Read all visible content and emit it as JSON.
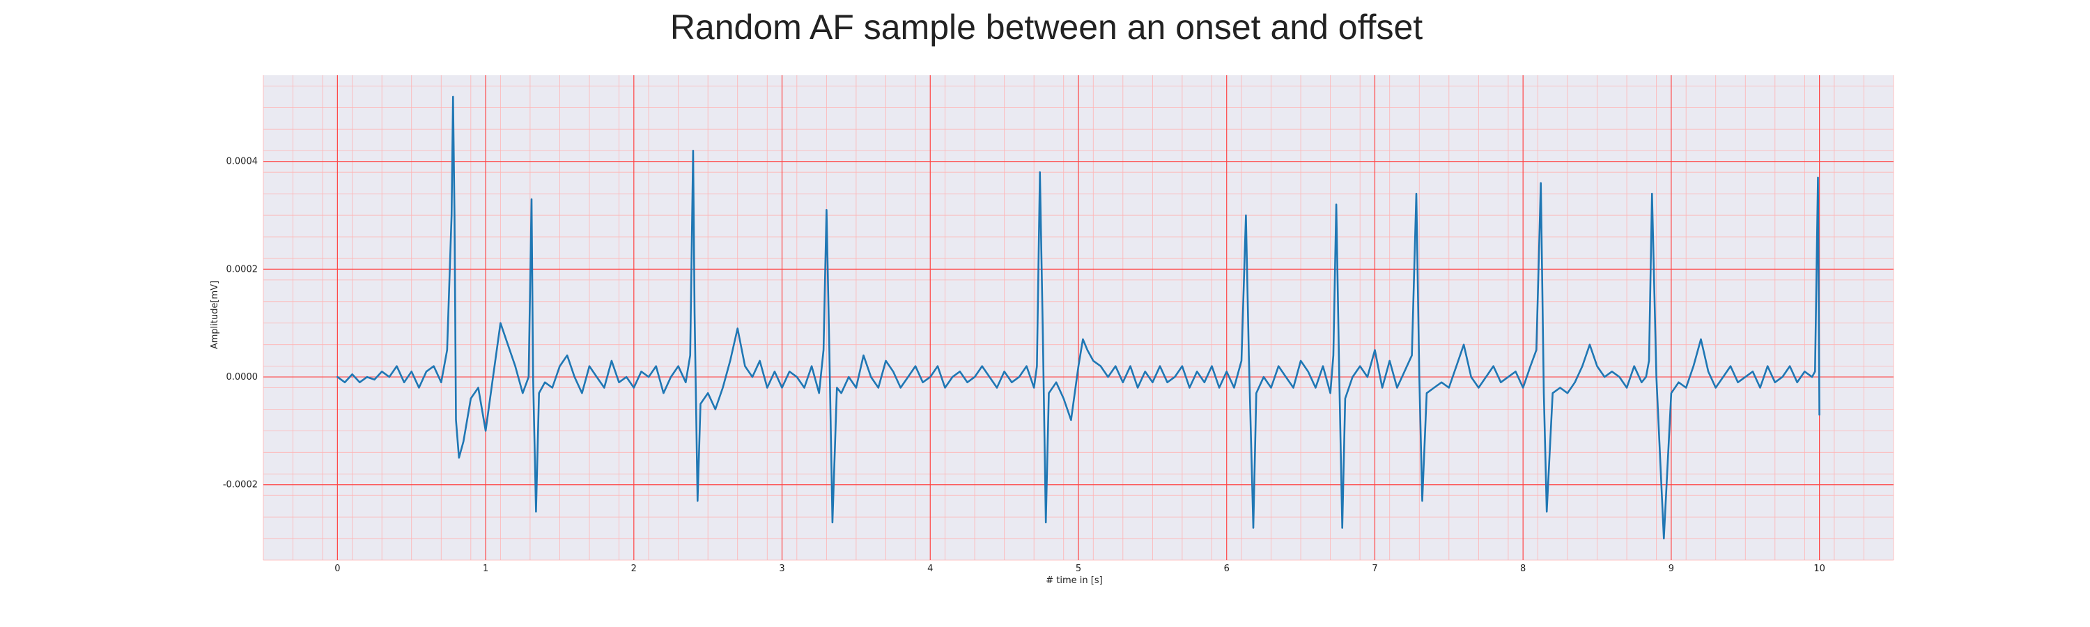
{
  "chart_data": {
    "type": "line",
    "title": "Random AF sample between an onset and offset",
    "xlabel": "# time in [s]",
    "ylabel": "Amplitude[mV]",
    "xlim": [
      -0.5,
      10.5
    ],
    "ylim": [
      -0.00034,
      0.00056
    ],
    "xticks": [
      0,
      1,
      2,
      3,
      4,
      5,
      6,
      7,
      8,
      9,
      10
    ],
    "xtick_labels": [
      "0",
      "1",
      "2",
      "3",
      "4",
      "5",
      "6",
      "7",
      "8",
      "9",
      "10"
    ],
    "yticks": [
      -0.0002,
      0.0,
      0.0002,
      0.0004
    ],
    "ytick_labels": [
      "-0.0002",
      "0.0000",
      "0.0002",
      "0.0004"
    ],
    "grid": true,
    "grid_minor": true,
    "colors": {
      "background": "#eaeaf2",
      "major_grid": "#ff4444",
      "minor_grid": "#ffb3b3",
      "line": "#1f77b4"
    },
    "series": [
      {
        "x": [
          0.0,
          0.05,
          0.1,
          0.15,
          0.2,
          0.25,
          0.3,
          0.35,
          0.4,
          0.45,
          0.5,
          0.55,
          0.6,
          0.65,
          0.7,
          0.74,
          0.77,
          0.78,
          0.79,
          0.8,
          0.82,
          0.85,
          0.9,
          0.95,
          1.0,
          1.05,
          1.1,
          1.15,
          1.2,
          1.25,
          1.29,
          1.31,
          1.32,
          1.34,
          1.36,
          1.4,
          1.45,
          1.5,
          1.55,
          1.6,
          1.65,
          1.7,
          1.75,
          1.8,
          1.85,
          1.9,
          1.95,
          2.0,
          2.05,
          2.1,
          2.15,
          2.2,
          2.25,
          2.3,
          2.35,
          2.38,
          2.4,
          2.41,
          2.43,
          2.45,
          2.5,
          2.55,
          2.6,
          2.65,
          2.7,
          2.75,
          2.8,
          2.85,
          2.9,
          2.95,
          3.0,
          3.05,
          3.1,
          3.15,
          3.2,
          3.25,
          3.28,
          3.3,
          3.32,
          3.34,
          3.37,
          3.4,
          3.45,
          3.5,
          3.55,
          3.6,
          3.65,
          3.7,
          3.75,
          3.8,
          3.85,
          3.9,
          3.95,
          4.0,
          4.05,
          4.1,
          4.15,
          4.2,
          4.25,
          4.3,
          4.35,
          4.4,
          4.45,
          4.5,
          4.55,
          4.6,
          4.65,
          4.7,
          4.72,
          4.74,
          4.76,
          4.78,
          4.8,
          4.85,
          4.9,
          4.95,
          5.0,
          5.03,
          5.06,
          5.1,
          5.15,
          5.2,
          5.25,
          5.3,
          5.35,
          5.4,
          5.45,
          5.5,
          5.55,
          5.6,
          5.65,
          5.7,
          5.75,
          5.8,
          5.85,
          5.9,
          5.95,
          6.0,
          6.05,
          6.1,
          6.13,
          6.15,
          6.18,
          6.2,
          6.25,
          6.3,
          6.35,
          6.4,
          6.45,
          6.5,
          6.55,
          6.6,
          6.65,
          6.7,
          6.72,
          6.74,
          6.76,
          6.78,
          6.8,
          6.85,
          6.9,
          6.95,
          7.0,
          7.05,
          7.1,
          7.15,
          7.2,
          7.25,
          7.28,
          7.3,
          7.32,
          7.35,
          7.4,
          7.45,
          7.5,
          7.55,
          7.6,
          7.65,
          7.7,
          7.75,
          7.8,
          7.85,
          7.9,
          7.95,
          8.0,
          8.05,
          8.09,
          8.12,
          8.14,
          8.16,
          8.2,
          8.25,
          8.3,
          8.35,
          8.4,
          8.45,
          8.5,
          8.55,
          8.6,
          8.65,
          8.7,
          8.75,
          8.8,
          8.83,
          8.85,
          8.87,
          8.9,
          8.95,
          9.0,
          9.05,
          9.1,
          9.15,
          9.2,
          9.25,
          9.3,
          9.35,
          9.4,
          9.45,
          9.5,
          9.55,
          9.6,
          9.65,
          9.7,
          9.75,
          9.8,
          9.85,
          9.9,
          9.95,
          9.97,
          9.99,
          10.0
        ],
        "y": [
          0.0,
          -1e-05,
          5e-06,
          -1e-05,
          0.0,
          -5e-06,
          1e-05,
          0.0,
          2e-05,
          -1e-05,
          1e-05,
          -2e-05,
          1e-05,
          2e-05,
          -1e-05,
          5e-05,
          0.0003,
          0.00052,
          0.0003,
          -8e-05,
          -0.00015,
          -0.00012,
          -4e-05,
          -2e-05,
          -0.0001,
          0.0,
          0.0001,
          6e-05,
          2e-05,
          -3e-05,
          0.0,
          0.00033,
          0.0,
          -0.00025,
          -3e-05,
          -1e-05,
          -2e-05,
          2e-05,
          4e-05,
          0.0,
          -3e-05,
          2e-05,
          0.0,
          -2e-05,
          3e-05,
          -1e-05,
          0.0,
          -2e-05,
          1e-05,
          0.0,
          2e-05,
          -3e-05,
          0.0,
          2e-05,
          -1e-05,
          4e-05,
          0.00042,
          0.00012,
          -0.00023,
          -5e-05,
          -3e-05,
          -6e-05,
          -2e-05,
          3e-05,
          9e-05,
          2e-05,
          0.0,
          3e-05,
          -2e-05,
          1e-05,
          -2e-05,
          1e-05,
          0.0,
          -2e-05,
          2e-05,
          -3e-05,
          5e-05,
          0.00031,
          4e-05,
          -0.00027,
          -2e-05,
          -3e-05,
          0.0,
          -2e-05,
          4e-05,
          0.0,
          -2e-05,
          3e-05,
          1e-05,
          -2e-05,
          0.0,
          2e-05,
          -1e-05,
          0.0,
          2e-05,
          -2e-05,
          0.0,
          1e-05,
          -1e-05,
          0.0,
          2e-05,
          0.0,
          -2e-05,
          1e-05,
          -1e-05,
          0.0,
          2e-05,
          -2e-05,
          2e-05,
          0.00038,
          8e-05,
          -0.00027,
          -3e-05,
          -1e-05,
          -4e-05,
          -8e-05,
          2e-05,
          7e-05,
          5e-05,
          3e-05,
          2e-05,
          0.0,
          2e-05,
          -1e-05,
          2e-05,
          -2e-05,
          1e-05,
          -1e-05,
          2e-05,
          -1e-05,
          0.0,
          2e-05,
          -2e-05,
          1e-05,
          -1e-05,
          2e-05,
          -2e-05,
          1e-05,
          -2e-05,
          3e-05,
          0.0003,
          4e-05,
          -0.00028,
          -3e-05,
          0.0,
          -2e-05,
          2e-05,
          0.0,
          -2e-05,
          3e-05,
          1e-05,
          -2e-05,
          2e-05,
          -3e-05,
          4e-05,
          0.00032,
          0.0,
          -0.00028,
          -4e-05,
          0.0,
          2e-05,
          0.0,
          5e-05,
          -2e-05,
          3e-05,
          -2e-05,
          1e-05,
          4e-05,
          0.00034,
          0.0,
          -0.00023,
          -3e-05,
          -2e-05,
          -1e-05,
          -2e-05,
          2e-05,
          6e-05,
          0.0,
          -2e-05,
          0.0,
          2e-05,
          -1e-05,
          0.0,
          1e-05,
          -2e-05,
          2e-05,
          5e-05,
          0.00036,
          -3e-05,
          -0.00025,
          -3e-05,
          -2e-05,
          -3e-05,
          -1e-05,
          2e-05,
          6e-05,
          2e-05,
          0.0,
          1e-05,
          0.0,
          -2e-05,
          2e-05,
          -1e-05,
          0.0,
          3e-05,
          0.00034,
          0.0,
          -0.0003,
          -3e-05,
          -1e-05,
          -2e-05,
          2e-05,
          7e-05,
          1e-05,
          -2e-05,
          0.0,
          2e-05,
          -1e-05,
          0.0,
          1e-05,
          -2e-05,
          2e-05,
          -1e-05,
          0.0,
          2e-05,
          -1e-05,
          1e-05,
          0.0,
          1e-05,
          0.00037,
          -7e-05
        ]
      }
    ]
  }
}
